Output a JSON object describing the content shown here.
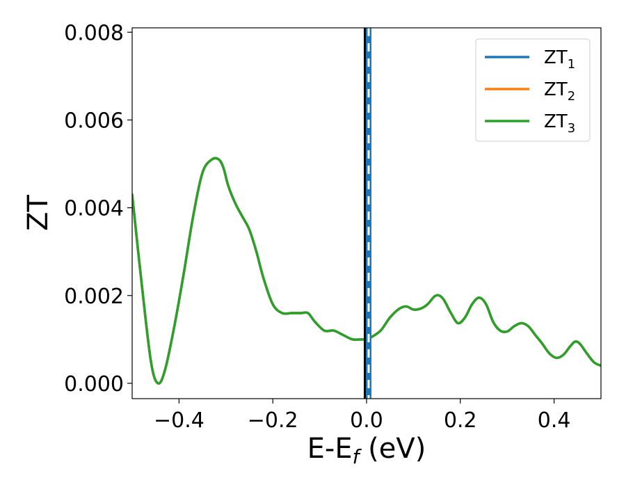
{
  "chart_data": {
    "type": "line",
    "xlabel": {
      "main": "E-E",
      "sub": "f",
      "tail": " (eV)"
    },
    "ylabel": "ZT",
    "xlim": [
      -0.5,
      0.5
    ],
    "ylim": [
      -0.00035,
      0.0081
    ],
    "xticks": [
      {
        "v": -0.4,
        "label": "−0.4"
      },
      {
        "v": -0.2,
        "label": "−0.2"
      },
      {
        "v": 0.0,
        "label": "0.0"
      },
      {
        "v": 0.2,
        "label": "0.2"
      },
      {
        "v": 0.4,
        "label": "0.4"
      }
    ],
    "yticks": [
      {
        "v": 0.0,
        "label": "0.000"
      },
      {
        "v": 0.002,
        "label": "0.002"
      },
      {
        "v": 0.004,
        "label": "0.004"
      },
      {
        "v": 0.006,
        "label": "0.006"
      },
      {
        "v": 0.008,
        "label": "0.008"
      }
    ],
    "grid": false,
    "legend_position": "top-right",
    "vertical_marker": {
      "x": 0.0,
      "colors": [
        "#000000",
        "#1f77b4",
        "#ffffff"
      ]
    },
    "series": [
      {
        "name": "ZT",
        "sub": "1",
        "color": "#1f77b4",
        "x": [
          -0.5,
          -0.48,
          -0.46,
          -0.445,
          -0.43,
          -0.41,
          -0.39,
          -0.37,
          -0.35,
          -0.33,
          -0.315,
          -0.305,
          -0.295,
          -0.28,
          -0.265,
          -0.25,
          -0.235,
          -0.22,
          -0.2,
          -0.18,
          -0.16,
          -0.14,
          -0.125,
          -0.11,
          -0.09,
          -0.07,
          -0.05,
          -0.03,
          -0.01,
          0.0,
          0.01,
          0.03,
          0.05,
          0.07,
          0.085,
          0.1,
          0.115,
          0.13,
          0.145,
          0.155,
          0.165,
          0.18,
          0.195,
          0.21,
          0.225,
          0.24,
          0.255,
          0.27,
          0.285,
          0.3,
          0.315,
          0.33,
          0.345,
          0.36,
          0.375,
          0.39,
          0.405,
          0.42,
          0.435,
          0.445,
          0.455,
          0.47,
          0.485,
          0.5
        ],
        "y": [
          0.0043,
          0.0023,
          0.0005,
          0.0,
          0.0003,
          0.0013,
          0.0025,
          0.0038,
          0.0048,
          0.0051,
          0.0051,
          0.0049,
          0.0045,
          0.0041,
          0.0038,
          0.0035,
          0.003,
          0.0024,
          0.0018,
          0.0016,
          0.0016,
          0.0016,
          0.0016,
          0.0014,
          0.0012,
          0.0012,
          0.0011,
          0.001,
          0.001,
          0.001,
          0.00105,
          0.0012,
          0.0015,
          0.0017,
          0.00175,
          0.00168,
          0.0017,
          0.0018,
          0.00198,
          0.002,
          0.0019,
          0.0016,
          0.00137,
          0.0015,
          0.0018,
          0.00195,
          0.0018,
          0.0014,
          0.0012,
          0.00118,
          0.0013,
          0.00137,
          0.0013,
          0.0011,
          0.0009,
          0.00068,
          0.00058,
          0.00065,
          0.00085,
          0.00095,
          0.0009,
          0.00068,
          0.00048,
          0.0004
        ]
      },
      {
        "name": "ZT",
        "sub": "2",
        "color": "#ff7f0e",
        "x": [
          -0.5,
          -0.48,
          -0.46,
          -0.445,
          -0.43,
          -0.41,
          -0.39,
          -0.37,
          -0.35,
          -0.33,
          -0.315,
          -0.305,
          -0.295,
          -0.28,
          -0.265,
          -0.25,
          -0.235,
          -0.22,
          -0.2,
          -0.18,
          -0.16,
          -0.14,
          -0.125,
          -0.11,
          -0.09,
          -0.07,
          -0.05,
          -0.03,
          -0.01,
          0.0,
          0.01,
          0.03,
          0.05,
          0.07,
          0.085,
          0.1,
          0.115,
          0.13,
          0.145,
          0.155,
          0.165,
          0.18,
          0.195,
          0.21,
          0.225,
          0.24,
          0.255,
          0.27,
          0.285,
          0.3,
          0.315,
          0.33,
          0.345,
          0.36,
          0.375,
          0.39,
          0.405,
          0.42,
          0.435,
          0.445,
          0.455,
          0.47,
          0.485,
          0.5
        ],
        "y": [
          0.0043,
          0.0023,
          0.0005,
          0.0,
          0.0003,
          0.0013,
          0.0025,
          0.0038,
          0.0048,
          0.0051,
          0.0051,
          0.0049,
          0.0045,
          0.0041,
          0.0038,
          0.0035,
          0.003,
          0.0024,
          0.0018,
          0.0016,
          0.0016,
          0.0016,
          0.0016,
          0.0014,
          0.0012,
          0.0012,
          0.0011,
          0.001,
          0.001,
          0.001,
          0.00105,
          0.0012,
          0.0015,
          0.0017,
          0.00175,
          0.00168,
          0.0017,
          0.0018,
          0.00198,
          0.002,
          0.0019,
          0.0016,
          0.00137,
          0.0015,
          0.0018,
          0.00195,
          0.0018,
          0.0014,
          0.0012,
          0.00118,
          0.0013,
          0.00137,
          0.0013,
          0.0011,
          0.0009,
          0.00068,
          0.00058,
          0.00065,
          0.00085,
          0.00095,
          0.0009,
          0.00068,
          0.00048,
          0.0004
        ]
      },
      {
        "name": "ZT",
        "sub": "3",
        "color": "#2ca02c",
        "x": [
          -0.5,
          -0.48,
          -0.46,
          -0.445,
          -0.43,
          -0.41,
          -0.39,
          -0.37,
          -0.35,
          -0.33,
          -0.315,
          -0.305,
          -0.295,
          -0.28,
          -0.265,
          -0.25,
          -0.235,
          -0.22,
          -0.2,
          -0.18,
          -0.16,
          -0.14,
          -0.125,
          -0.11,
          -0.09,
          -0.07,
          -0.05,
          -0.03,
          -0.01,
          0.0,
          0.01,
          0.03,
          0.05,
          0.07,
          0.085,
          0.1,
          0.115,
          0.13,
          0.145,
          0.155,
          0.165,
          0.18,
          0.195,
          0.21,
          0.225,
          0.24,
          0.255,
          0.27,
          0.285,
          0.3,
          0.315,
          0.33,
          0.345,
          0.36,
          0.375,
          0.39,
          0.405,
          0.42,
          0.435,
          0.445,
          0.455,
          0.47,
          0.485,
          0.5
        ],
        "y": [
          0.0043,
          0.0023,
          0.0005,
          0.0,
          0.0003,
          0.0013,
          0.0025,
          0.0038,
          0.0048,
          0.0051,
          0.0051,
          0.0049,
          0.0045,
          0.0041,
          0.0038,
          0.0035,
          0.003,
          0.0024,
          0.0018,
          0.0016,
          0.0016,
          0.0016,
          0.0016,
          0.0014,
          0.0012,
          0.0012,
          0.0011,
          0.001,
          0.001,
          0.001,
          0.00105,
          0.0012,
          0.0015,
          0.0017,
          0.00175,
          0.00168,
          0.0017,
          0.0018,
          0.00198,
          0.002,
          0.0019,
          0.0016,
          0.00137,
          0.0015,
          0.0018,
          0.00195,
          0.0018,
          0.0014,
          0.0012,
          0.00118,
          0.0013,
          0.00137,
          0.0013,
          0.0011,
          0.0009,
          0.00068,
          0.00058,
          0.00065,
          0.00085,
          0.00095,
          0.0009,
          0.00068,
          0.00048,
          0.0004
        ]
      }
    ]
  }
}
